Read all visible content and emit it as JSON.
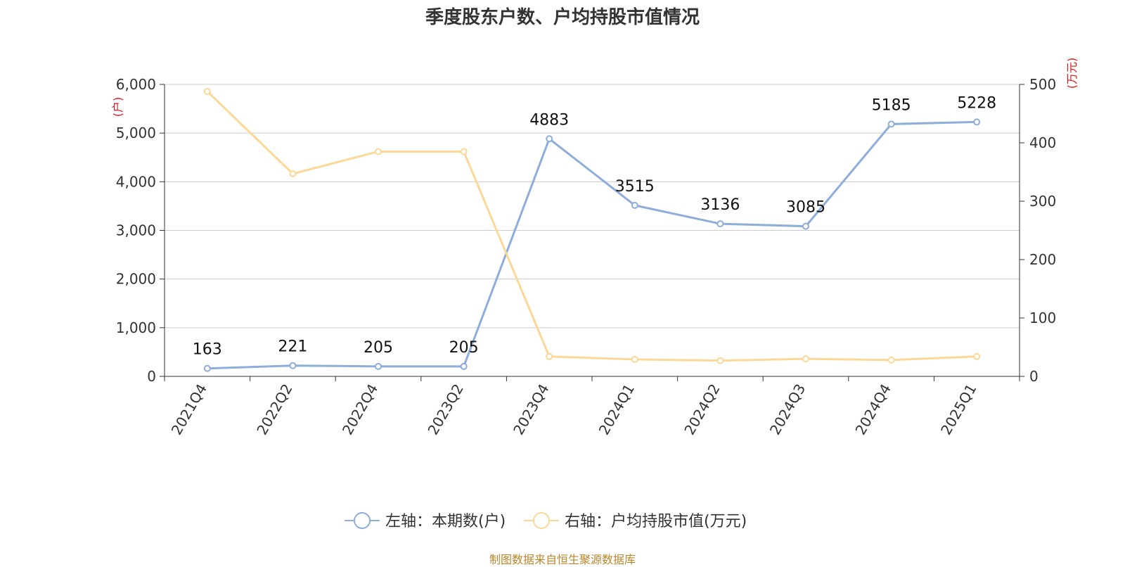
{
  "chart_data": {
    "type": "line",
    "title": "季度股东户数、户均持股市值情况",
    "categories": [
      "2021Q4",
      "2022Q2",
      "2022Q4",
      "2023Q2",
      "2023Q4",
      "2024Q1",
      "2024Q2",
      "2024Q3",
      "2024Q4",
      "2025Q1"
    ],
    "series": [
      {
        "name": "左轴：本期数(户)",
        "axis": "left",
        "color": "#8eaddb",
        "values": [
          163,
          221,
          205,
          205,
          4883,
          3515,
          3136,
          3085,
          5185,
          5228
        ],
        "labels": [
          "163",
          "221",
          "205",
          "205",
          "4883",
          "3515",
          "3136",
          "3085",
          "5185",
          "5228"
        ]
      },
      {
        "name": "右轴：户均持股市值(万元)",
        "axis": "right",
        "color": "#fcd898",
        "values": [
          488,
          347,
          385,
          385,
          34,
          29,
          27,
          30,
          28,
          34
        ]
      }
    ],
    "left_axis": {
      "unit": "(户)",
      "ylim": [
        0,
        6000
      ],
      "ticks": [
        0,
        1000,
        2000,
        3000,
        4000,
        5000,
        6000
      ],
      "tick_labels": [
        "0",
        "1,000",
        "2,000",
        "3,000",
        "4,000",
        "5,000",
        "6,000"
      ]
    },
    "right_axis": {
      "unit": "(万元)",
      "ylim": [
        0,
        500
      ],
      "ticks": [
        0,
        100,
        200,
        300,
        400,
        500
      ],
      "tick_labels": [
        "0",
        "100",
        "200",
        "300",
        "400",
        "500"
      ]
    },
    "grid": true,
    "legend_position": "bottom-center"
  },
  "footer": {
    "source": "制图数据来自恒生聚源数据库"
  }
}
